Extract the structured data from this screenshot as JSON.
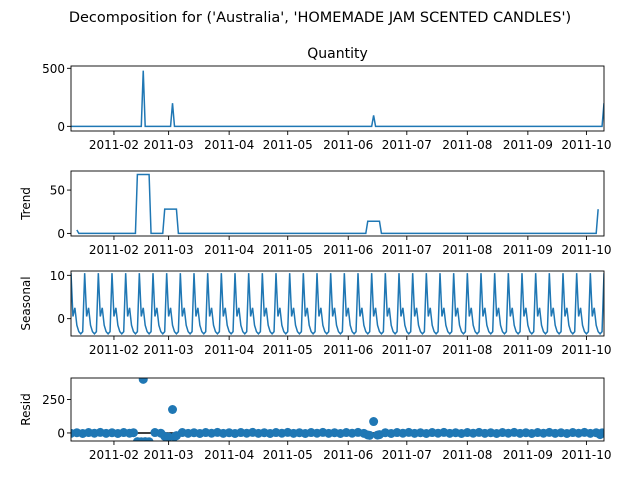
{
  "figure": {
    "suptitle": "Decomposition for ('Australia', 'HOMEMADE JAM SCENTED CANDLES')",
    "colors": {
      "series": "#1f77b4",
      "axis": "#000000",
      "zero_line": "#000000"
    }
  },
  "chart_data": [
    {
      "type": "line",
      "title": "Quantity",
      "ylabel": "",
      "xlim": [
        "2011-01-10",
        "2011-10-10"
      ],
      "ylim": [
        -40,
        520
      ],
      "yticks": [
        0,
        500
      ],
      "xticks": [
        "2011-02",
        "2011-03",
        "2011-04",
        "2011-05",
        "2011-06",
        "2011-07",
        "2011-08",
        "2011-09",
        "2011-10"
      ],
      "series": [
        {
          "x": [
            "2011-01-10",
            "2011-01-11",
            "2011-02-15",
            "2011-02-16",
            "2011-02-17",
            "2011-03-02",
            "2011-03-03",
            "2011-03-04",
            "2011-06-13",
            "2011-06-14",
            "2011-06-15",
            "2011-10-09",
            "2011-10-10"
          ],
          "values": [
            0,
            0,
            0,
            480,
            0,
            0,
            200,
            0,
            0,
            95,
            0,
            0,
            200
          ]
        }
      ]
    },
    {
      "type": "line",
      "title": "",
      "ylabel": "Trend",
      "xlim": [
        "2011-01-10",
        "2011-10-10"
      ],
      "ylim": [
        -3,
        72
      ],
      "yticks": [
        0,
        50
      ],
      "xticks": [
        "2011-02",
        "2011-03",
        "2011-04",
        "2011-05",
        "2011-06",
        "2011-07",
        "2011-08",
        "2011-09",
        "2011-10"
      ],
      "series": [
        {
          "x": [
            "2011-01-13",
            "2011-01-14",
            "2011-02-12",
            "2011-02-13",
            "2011-02-19",
            "2011-02-20",
            "2011-02-26",
            "2011-02-27",
            "2011-03-05",
            "2011-03-06",
            "2011-06-10",
            "2011-06-11",
            "2011-06-17",
            "2011-06-18",
            "2011-10-06",
            "2011-10-07"
          ],
          "values": [
            4,
            0,
            0,
            68,
            68,
            0,
            0,
            28,
            28,
            0,
            0,
            14,
            14,
            0,
            0,
            28
          ]
        }
      ]
    },
    {
      "type": "line",
      "title": "",
      "ylabel": "Seasonal",
      "xlim": [
        "2011-01-10",
        "2011-10-10"
      ],
      "ylim": [
        -4,
        11
      ],
      "yticks": [
        0,
        10
      ],
      "xticks": [
        "2011-02",
        "2011-03",
        "2011-04",
        "2011-05",
        "2011-06",
        "2011-07",
        "2011-08",
        "2011-09",
        "2011-10"
      ],
      "period_days": 7,
      "pattern": [
        10.5,
        0.5,
        2.5,
        -1.5,
        -3.0,
        -3.5,
        -3.0
      ],
      "start": "2011-01-10"
    },
    {
      "type": "scatter",
      "title": "",
      "ylabel": "Resid",
      "xlim": [
        "2011-01-10",
        "2011-10-10"
      ],
      "ylim": [
        -60,
        410
      ],
      "yticks": [
        0,
        250
      ],
      "xticks": [
        "2011-02",
        "2011-03",
        "2011-04",
        "2011-05",
        "2011-06",
        "2011-07",
        "2011-08",
        "2011-09",
        "2011-10"
      ],
      "baseline": 0,
      "points": [
        {
          "x": "2011-01-10",
          "y": -3
        },
        {
          "x": "2011-01-13",
          "y": 2
        },
        {
          "x": "2011-01-16",
          "y": -4
        },
        {
          "x": "2011-01-19",
          "y": 3
        },
        {
          "x": "2011-01-22",
          "y": -2
        },
        {
          "x": "2011-01-25",
          "y": 4
        },
        {
          "x": "2011-01-28",
          "y": -3
        },
        {
          "x": "2011-01-31",
          "y": 2
        },
        {
          "x": "2011-02-03",
          "y": -4
        },
        {
          "x": "2011-02-06",
          "y": 3
        },
        {
          "x": "2011-02-09",
          "y": -2
        },
        {
          "x": "2011-02-11",
          "y": 2
        },
        {
          "x": "2011-02-13",
          "y": -65
        },
        {
          "x": "2011-02-14",
          "y": -68
        },
        {
          "x": "2011-02-15",
          "y": -66
        },
        {
          "x": "2011-02-16",
          "y": 400
        },
        {
          "x": "2011-02-17",
          "y": -65
        },
        {
          "x": "2011-02-18",
          "y": -68
        },
        {
          "x": "2011-02-19",
          "y": -66
        },
        {
          "x": "2011-02-22",
          "y": 3
        },
        {
          "x": "2011-02-25",
          "y": -2
        },
        {
          "x": "2011-02-27",
          "y": -25
        },
        {
          "x": "2011-03-01",
          "y": -30
        },
        {
          "x": "2011-03-03",
          "y": 175
        },
        {
          "x": "2011-03-04",
          "y": -28
        },
        {
          "x": "2011-03-05",
          "y": -20
        },
        {
          "x": "2011-03-08",
          "y": 3
        },
        {
          "x": "2011-03-11",
          "y": -3
        },
        {
          "x": "2011-03-14",
          "y": 2
        },
        {
          "x": "2011-03-17",
          "y": -4
        },
        {
          "x": "2011-03-20",
          "y": 3
        },
        {
          "x": "2011-03-23",
          "y": -2
        },
        {
          "x": "2011-03-26",
          "y": 4
        },
        {
          "x": "2011-03-29",
          "y": -3
        },
        {
          "x": "2011-04-01",
          "y": 2
        },
        {
          "x": "2011-04-04",
          "y": -4
        },
        {
          "x": "2011-04-07",
          "y": 3
        },
        {
          "x": "2011-04-10",
          "y": -2
        },
        {
          "x": "2011-04-13",
          "y": 4
        },
        {
          "x": "2011-04-16",
          "y": -3
        },
        {
          "x": "2011-04-19",
          "y": 2
        },
        {
          "x": "2011-04-22",
          "y": -4
        },
        {
          "x": "2011-04-25",
          "y": 3
        },
        {
          "x": "2011-04-28",
          "y": -2
        },
        {
          "x": "2011-05-01",
          "y": 4
        },
        {
          "x": "2011-05-04",
          "y": -3
        },
        {
          "x": "2011-05-07",
          "y": 2
        },
        {
          "x": "2011-05-10",
          "y": -4
        },
        {
          "x": "2011-05-13",
          "y": 3
        },
        {
          "x": "2011-05-16",
          "y": -2
        },
        {
          "x": "2011-05-19",
          "y": 4
        },
        {
          "x": "2011-05-22",
          "y": -3
        },
        {
          "x": "2011-05-25",
          "y": 2
        },
        {
          "x": "2011-05-28",
          "y": -4
        },
        {
          "x": "2011-05-31",
          "y": 3
        },
        {
          "x": "2011-06-03",
          "y": -2
        },
        {
          "x": "2011-06-06",
          "y": 4
        },
        {
          "x": "2011-06-09",
          "y": -3
        },
        {
          "x": "2011-06-11",
          "y": -15
        },
        {
          "x": "2011-06-12",
          "y": -18
        },
        {
          "x": "2011-06-14",
          "y": 85
        },
        {
          "x": "2011-06-16",
          "y": -16
        },
        {
          "x": "2011-06-17",
          "y": -12
        },
        {
          "x": "2011-06-20",
          "y": 2
        },
        {
          "x": "2011-06-23",
          "y": -4
        },
        {
          "x": "2011-06-26",
          "y": 3
        },
        {
          "x": "2011-06-29",
          "y": -2
        },
        {
          "x": "2011-07-02",
          "y": 4
        },
        {
          "x": "2011-07-05",
          "y": -3
        },
        {
          "x": "2011-07-08",
          "y": 2
        },
        {
          "x": "2011-07-11",
          "y": -4
        },
        {
          "x": "2011-07-14",
          "y": 3
        },
        {
          "x": "2011-07-17",
          "y": -2
        },
        {
          "x": "2011-07-20",
          "y": 4
        },
        {
          "x": "2011-07-23",
          "y": -3
        },
        {
          "x": "2011-07-26",
          "y": 2
        },
        {
          "x": "2011-07-29",
          "y": -4
        },
        {
          "x": "2011-08-01",
          "y": 3
        },
        {
          "x": "2011-08-04",
          "y": -2
        },
        {
          "x": "2011-08-07",
          "y": 4
        },
        {
          "x": "2011-08-10",
          "y": -3
        },
        {
          "x": "2011-08-13",
          "y": 2
        },
        {
          "x": "2011-08-16",
          "y": -4
        },
        {
          "x": "2011-08-19",
          "y": 3
        },
        {
          "x": "2011-08-22",
          "y": -2
        },
        {
          "x": "2011-08-25",
          "y": 4
        },
        {
          "x": "2011-08-28",
          "y": -3
        },
        {
          "x": "2011-08-31",
          "y": 2
        },
        {
          "x": "2011-09-03",
          "y": -4
        },
        {
          "x": "2011-09-06",
          "y": 3
        },
        {
          "x": "2011-09-09",
          "y": -2
        },
        {
          "x": "2011-09-12",
          "y": 4
        },
        {
          "x": "2011-09-15",
          "y": -3
        },
        {
          "x": "2011-09-18",
          "y": 2
        },
        {
          "x": "2011-09-21",
          "y": -4
        },
        {
          "x": "2011-09-24",
          "y": 3
        },
        {
          "x": "2011-09-27",
          "y": -2
        },
        {
          "x": "2011-09-30",
          "y": 4
        },
        {
          "x": "2011-10-03",
          "y": -3
        },
        {
          "x": "2011-10-06",
          "y": 2
        },
        {
          "x": "2011-10-08",
          "y": -12
        },
        {
          "x": "2011-10-09",
          "y": 1
        }
      ]
    }
  ]
}
